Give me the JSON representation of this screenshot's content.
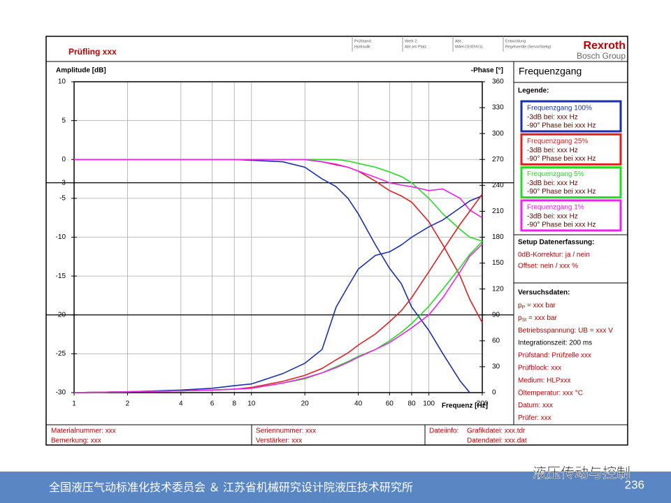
{
  "chart_data": {
    "type": "line",
    "x_scale": "log",
    "xlabel": "Frequenz [Hz]",
    "ylabel": "Amplitude [dB]",
    "y2label": "-Phase [°]",
    "x": [
      1,
      2,
      4,
      6,
      8,
      10,
      15,
      20,
      25,
      30,
      35,
      40,
      50,
      60,
      70,
      80,
      100,
      120,
      150,
      170,
      200
    ],
    "xlim": [
      1,
      200
    ],
    "xticks": [
      1,
      2,
      4,
      6,
      8,
      10,
      20,
      40,
      60,
      80,
      100,
      200
    ],
    "ylim": [
      -30,
      10
    ],
    "yticks": [
      -30,
      -25,
      -20,
      -15,
      -10,
      -5,
      -3,
      0,
      5,
      10
    ],
    "y2lim": [
      0,
      360
    ],
    "y2ticks": [
      0,
      30,
      60,
      90,
      120,
      150,
      180,
      210,
      240,
      270,
      300,
      330,
      360
    ],
    "grid": true,
    "reference_lines": {
      "y": -3,
      "y2": 90
    },
    "series": [
      {
        "name": "Frequenzgang 100%",
        "notes": [
          "-3dB bei: xxx Hz",
          "-90° Phase bei xxx Hz"
        ],
        "color": "#1a2fb0",
        "values": [
          0,
          0,
          0,
          0,
          0,
          -0.1,
          -0.3,
          -1,
          -2.5,
          -3.5,
          -5,
          -7,
          -11,
          -14,
          -16,
          -19,
          -22,
          -25,
          -28.5,
          -30,
          null
        ]
      },
      {
        "name": "Frequenzgang 25%",
        "notes": [
          "-3dB bei: xxx Hz",
          "-90° Phase bei xxx Hz"
        ],
        "color": "#e02020",
        "values": [
          0,
          0,
          0,
          0,
          0,
          0,
          0,
          0,
          -0.3,
          -0.7,
          -1,
          -1.5,
          -2.8,
          -4,
          -4.7,
          -5.5,
          -8,
          -11,
          -15,
          -18,
          -21
        ]
      },
      {
        "name": "Frequenzgang 5%",
        "notes": [
          "-3dB bei: xxx Hz",
          "-90° Phase bei xxx Hz"
        ],
        "color": "#22dd22",
        "values": [
          0,
          0,
          0,
          0,
          0,
          0,
          0,
          0,
          0,
          0,
          -0.2,
          -0.5,
          -1,
          -1.6,
          -2.2,
          -3,
          -5,
          -7,
          -9,
          -10,
          -10.5
        ]
      },
      {
        "name": "Frequenzgang 1%",
        "notes": [
          "-3dB bei: xxx Hz",
          "-90° Phase bei xxx Hz"
        ],
        "color": "#ee22ee",
        "values": [
          0,
          0,
          0,
          0,
          0,
          0,
          0,
          0,
          -0.3,
          -0.6,
          -1,
          -1.5,
          -2.3,
          -3,
          -3.3,
          -3.5,
          -4,
          -3.8,
          -5,
          -6.5,
          -7.5
        ]
      },
      {
        "color": "#1a2fb0",
        "axis": "y2",
        "values": [
          0,
          1,
          3,
          5,
          8,
          10,
          22,
          34,
          50,
          99,
          123,
          143,
          159,
          163,
          171,
          180,
          192,
          200,
          214,
          222,
          228
        ]
      },
      {
        "color": "#e02020",
        "axis": "y2",
        "values": [
          0,
          1,
          2,
          3,
          4,
          6,
          13,
          20,
          28,
          38,
          46,
          55,
          68,
          82,
          95,
          110,
          140,
          165,
          195,
          210,
          230
        ]
      },
      {
        "color": "#22dd22",
        "axis": "y2",
        "values": [
          0,
          1,
          2,
          3,
          4,
          5,
          11,
          16,
          23,
          30,
          36,
          42,
          50,
          60,
          70,
          80,
          100,
          120,
          145,
          160,
          175
        ]
      },
      {
        "color": "#ee22ee",
        "axis": "y2",
        "values": [
          0,
          1,
          2,
          3,
          4,
          5,
          11,
          17,
          23,
          29,
          35,
          41,
          50,
          58,
          67,
          75,
          90,
          110,
          140,
          158,
          172
        ]
      }
    ]
  },
  "header": {
    "title": "Prüfling xxx",
    "cells": [
      [
        "Prüfstand:",
        "Hydraulik"
      ],
      [
        "Werk 2:",
        "Abt am Platz"
      ],
      [
        "Abt.:",
        "MAH-CE/ENV11"
      ],
      [
        "Entwicklung",
        "Regelventile (Servo/Stetig)"
      ]
    ],
    "brand": "Rexroth",
    "brand_sub": "Bosch Group"
  },
  "panel": {
    "title": "Frequenzgang",
    "legend_title": "Legende:",
    "setup_title": "Setup Datenerfassung:",
    "setup_items": [
      "0dB-Korrektur: ja / nein",
      "Offset: nein / xxx %"
    ],
    "test_title": "Versuchsdaten:",
    "test_items": [
      [
        "p",
        "P",
        " = xxx bar"
      ],
      [
        "p",
        "St",
        " = xxx bar"
      ],
      [
        "Betriebsspannung: UB = xxx V"
      ],
      [
        "Integrationszeit: 200 ms"
      ],
      [
        "Prüfstand: Prüfzelle xxx"
      ],
      [
        "Prüfblock: xxx"
      ],
      [
        "Medium: HLPxxx"
      ],
      [
        "Öltemperatur: xxx °C"
      ],
      [
        "Datum: xxx"
      ],
      [
        "Prüfer: xxx"
      ]
    ]
  },
  "footer": {
    "material": "Materialnummer: xxx",
    "remark": "Bemerkung: xxx",
    "serial": "Seriennummer: xxx",
    "amplifier": "Verstärker: xxx",
    "fileinfo": "Dateiinfo:",
    "graphfile": "Grafikdatei: xxx.tdr",
    "datafile": "Datendatei: xxx.dat"
  },
  "banner": {
    "text": "全国液压气动标准化技术委员会 ＆ 江苏省机械研究设计院液压技术研究所",
    "logo": "液压传动与控制",
    "page": "236"
  }
}
